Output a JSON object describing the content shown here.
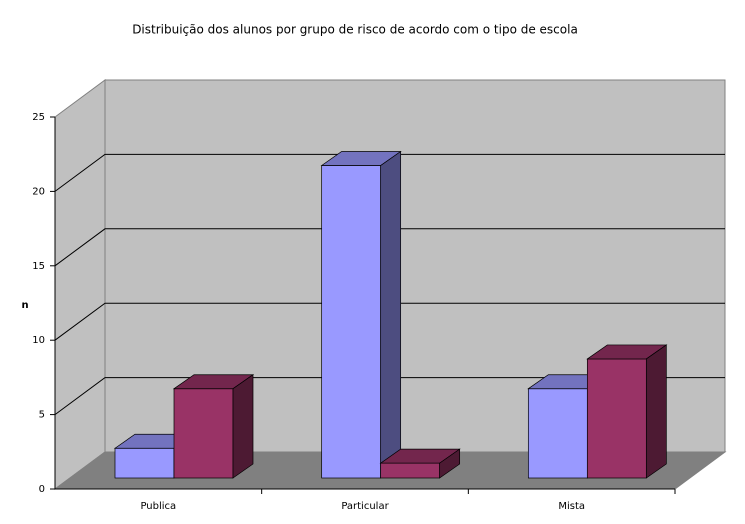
{
  "chart_data": {
    "type": "bar3d",
    "title": "Distribuição dos alunos por grupo de risco de acordo com o tipo de escola",
    "y_label": "n",
    "categories": [
      "Publica",
      "Particular",
      "Mista"
    ],
    "series": [
      {
        "color": "#9999ff",
        "values": [
          2,
          21,
          6
        ]
      },
      {
        "color": "#993366",
        "values": [
          6,
          1,
          8
        ]
      }
    ],
    "ylim": [
      0,
      25
    ],
    "yticks": [
      0,
      5,
      10,
      15,
      20,
      25
    ],
    "grid": true
  }
}
